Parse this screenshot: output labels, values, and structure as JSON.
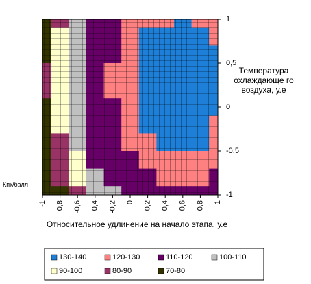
{
  "chart_data": {
    "type": "contour",
    "xlabel": "Относительное удлинение на начало этапа, у.е",
    "ylabel": "Температура охлаждающе го воздуха, у.е",
    "zlabel": "Кпк/балл",
    "x": [
      -1,
      -0.8,
      -0.6,
      -0.4,
      -0.2,
      0,
      0.2,
      0.4,
      0.6,
      0.8,
      1
    ],
    "y": [
      1,
      0.8,
      0.6,
      0.4,
      0.2,
      0,
      -0.2,
      -0.4,
      -0.6,
      -0.8,
      -1
    ],
    "z": [
      [
        75,
        87,
        101,
        111,
        116,
        120,
        126,
        129,
        130,
        128,
        123
      ],
      [
        77,
        90,
        103,
        112,
        117,
        123,
        130,
        132,
        133,
        132,
        127
      ],
      [
        79,
        92,
        106,
        113,
        119,
        126,
        132,
        136,
        136,
        134,
        130
      ],
      [
        80,
        94,
        107,
        114,
        120,
        128,
        133,
        138,
        139,
        136,
        131
      ],
      [
        80,
        94,
        107,
        114,
        120,
        128,
        134,
        138,
        141,
        136,
        131
      ],
      [
        79,
        93,
        107,
        114,
        119,
        127,
        133,
        136,
        138,
        135,
        131
      ],
      [
        78,
        91,
        105,
        113,
        118,
        126,
        131,
        134,
        135,
        133,
        129
      ],
      [
        76,
        89,
        103,
        111,
        117,
        122,
        127,
        131,
        131,
        130,
        125
      ],
      [
        73,
        85,
        99,
        110,
        114,
        119,
        123,
        126,
        127,
        126,
        121
      ],
      [
        70,
        82,
        94,
        106,
        112,
        116,
        119,
        122,
        122,
        120,
        117
      ],
      [
        67,
        77,
        89,
        100,
        108,
        113,
        116,
        117,
        117,
        117,
        114
      ]
    ],
    "bands": [
      {
        "name": "130-140",
        "min": 130,
        "max": 140,
        "color": "#1e7fd8"
      },
      {
        "name": "120-130",
        "min": 120,
        "max": 130,
        "color": "#ff8080"
      },
      {
        "name": "110-120",
        "min": 110,
        "max": 120,
        "color": "#660066"
      },
      {
        "name": "100-110",
        "min": 100,
        "max": 110,
        "color": "#c0c0c0"
      },
      {
        "name": "90-100",
        "min": 90,
        "max": 100,
        "color": "#ffffcc"
      },
      {
        "name": "80-90",
        "min": 80,
        "max": 90,
        "color": "#993366"
      },
      {
        "name": "70-80",
        "min": 70,
        "max": 80,
        "color": "#333300"
      }
    ],
    "xlim": [
      -1,
      1
    ],
    "ylim": [
      -1,
      1
    ],
    "xticks": [
      {
        "value": -1,
        "label": "-1"
      },
      {
        "value": -0.8,
        "label": "-0,8"
      },
      {
        "value": -0.6,
        "label": "-0,6"
      },
      {
        "value": -0.4,
        "label": "-0,4"
      },
      {
        "value": -0.2,
        "label": "-0,2"
      },
      0,
      {
        "value": 0.2,
        "label": "0,2"
      },
      {
        "value": 0.4,
        "label": "0,4"
      },
      {
        "value": 0.6,
        "label": "0,6"
      },
      {
        "value": 0.8,
        "label": "0,8"
      },
      1
    ],
    "yticks": [
      1,
      {
        "value": 0.5,
        "label": "0,5"
      },
      0,
      {
        "value": -0.5,
        "label": "-0,5"
      },
      -1
    ],
    "grid": true
  }
}
